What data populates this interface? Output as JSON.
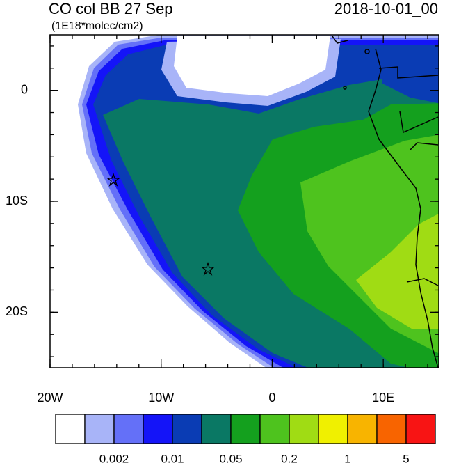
{
  "title": "CO col BB 27 Sep",
  "subtitle": "(1E18*molec/cm2)",
  "date": "2018-10-01_00",
  "map": {
    "xlim": [
      -20,
      15
    ],
    "ylim": [
      -25,
      5
    ],
    "xticks": [
      {
        "value": -20,
        "label": "20W"
      },
      {
        "value": -10,
        "label": "10W"
      },
      0,
      {
        "value": 10,
        "label": "10E"
      }
    ],
    "yticks": [
      0,
      {
        "value": -10,
        "label": "10S"
      },
      {
        "value": -20,
        "label": "20S"
      }
    ]
  },
  "colorbar": {
    "colors": [
      "#ffffff",
      "#a8b4f8",
      "#6470f8",
      "#1414f8",
      "#0a3cb4",
      "#0a7864",
      "#14a01e",
      "#4ec31e",
      "#a0dc14",
      "#f0f000",
      "#f8b400",
      "#f86400",
      "#f81414"
    ],
    "labels": [
      "0.002",
      "0.01",
      "0.05",
      "0.2",
      "1",
      "5"
    ]
  }
}
